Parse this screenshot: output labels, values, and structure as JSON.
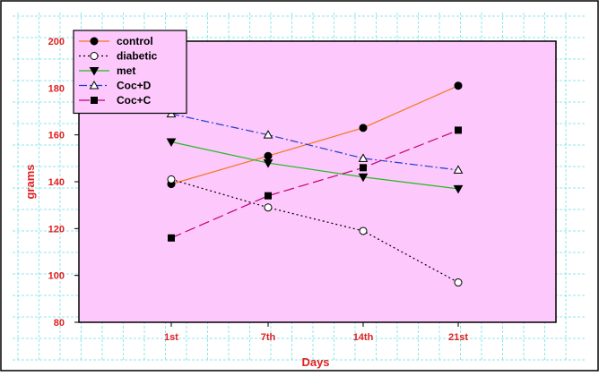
{
  "chart_data": {
    "type": "line",
    "xlabel": "Days",
    "ylabel": "grams",
    "categories": [
      "1st",
      "7th",
      "14th",
      "21st"
    ],
    "ylim": [
      80,
      200
    ],
    "yticks": [
      80,
      100,
      120,
      140,
      160,
      180,
      200
    ],
    "grid": false,
    "legend_position": "top-left",
    "series": [
      {
        "name": "control",
        "values": [
          139,
          151,
          163,
          181
        ],
        "color": "#f07a1a",
        "dash": "",
        "marker": "filled-circle"
      },
      {
        "name": "diabetic",
        "values": [
          141,
          129,
          119,
          97
        ],
        "color": "#000000",
        "dash": "2,3",
        "marker": "open-circle"
      },
      {
        "name": "met",
        "values": [
          157,
          148,
          142,
          137
        ],
        "color": "#22bb22",
        "dash": "",
        "marker": "filled-triangle-down"
      },
      {
        "name": "Coc+D",
        "values": [
          169,
          160,
          150,
          145
        ],
        "color": "#1f3fd0",
        "dash": "9,3,2,3",
        "marker": "open-triangle-up"
      },
      {
        "name": "Coc+C",
        "values": [
          116,
          134,
          146,
          162
        ],
        "color": "#c0007a",
        "dash": "12,5",
        "marker": "filled-square"
      }
    ],
    "colors": {
      "plot_background": "#fdc8fb",
      "axis_label_color": "#e02020",
      "tick_label_color": "#e02020",
      "watermark_grid": "#8fe6ec"
    }
  }
}
